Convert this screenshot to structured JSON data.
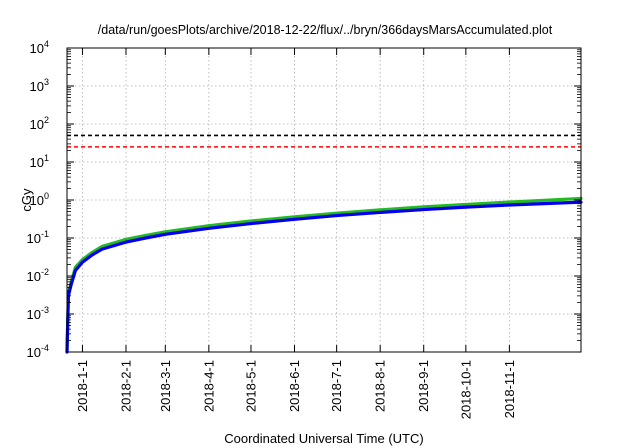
{
  "chart_data": {
    "type": "line",
    "title": "/data/run/goesPlots/archive/2018-12-22/flux/../bryn/366daysMarsAccumulated.plot",
    "xlabel": "Coordinated Universal Time (UTC)",
    "ylabel": "cGy",
    "xlim": [
      "2017-12-21",
      "2018-12-22"
    ],
    "ylim": [
      0.0001,
      10000
    ],
    "yscale": "log",
    "grid": true,
    "x_ticks": [
      "2018-1-1",
      "2018-2-1",
      "2018-3-1",
      "2018-4-1",
      "2018-5-1",
      "2018-6-1",
      "2018-7-1",
      "2018-8-1",
      "2018-9-1",
      "2018-10-1",
      "2018-11-1"
    ],
    "y_ticks": [
      {
        "value": 0.0001,
        "base": "10",
        "exp": "-4"
      },
      {
        "value": 0.001,
        "base": "10",
        "exp": "-3"
      },
      {
        "value": 0.01,
        "base": "10",
        "exp": "-2"
      },
      {
        "value": 0.1,
        "base": "10",
        "exp": "-1"
      },
      {
        "value": 1,
        "base": "10",
        "exp": "0"
      },
      {
        "value": 10,
        "base": "10",
        "exp": "1"
      },
      {
        "value": 100,
        "base": "10",
        "exp": "2"
      },
      {
        "value": 1000,
        "base": "10",
        "exp": "3"
      },
      {
        "value": 10000,
        "base": "10",
        "exp": "4"
      }
    ],
    "reference_lines": [
      {
        "value": 50,
        "color": "#000000",
        "style": "dashed"
      },
      {
        "value": 25,
        "color": "#ff0000",
        "style": "dashed"
      }
    ],
    "series": [
      {
        "color": "#22bb22",
        "points": [
          [
            "2017-12-21",
            0.0001
          ],
          [
            "2017-12-22",
            0.0035
          ],
          [
            "2017-12-24",
            0.007
          ],
          [
            "2017-12-27",
            0.017
          ],
          [
            "2018-1-1",
            0.027
          ],
          [
            "2018-1-8",
            0.042
          ],
          [
            "2018-1-15",
            0.06
          ],
          [
            "2018-2-1",
            0.092
          ],
          [
            "2018-2-15",
            0.117
          ],
          [
            "2018-3-1",
            0.145
          ],
          [
            "2018-4-1",
            0.21
          ],
          [
            "2018-5-1",
            0.28
          ],
          [
            "2018-6-1",
            0.36
          ],
          [
            "2018-7-1",
            0.45
          ],
          [
            "2018-8-1",
            0.55
          ],
          [
            "2018-9-1",
            0.66
          ],
          [
            "2018-10-1",
            0.76
          ],
          [
            "2018-11-1",
            0.88
          ],
          [
            "2018-12-22",
            1.1
          ]
        ]
      },
      {
        "color": "#0000ee",
        "points": [
          [
            "2017-12-21",
            0.0001
          ],
          [
            "2017-12-22",
            0.003
          ],
          [
            "2017-12-24",
            0.006
          ],
          [
            "2017-12-27",
            0.014
          ],
          [
            "2018-1-1",
            0.023
          ],
          [
            "2018-1-8",
            0.036
          ],
          [
            "2018-1-15",
            0.051
          ],
          [
            "2018-2-1",
            0.078
          ],
          [
            "2018-2-15",
            0.1
          ],
          [
            "2018-3-1",
            0.125
          ],
          [
            "2018-4-1",
            0.18
          ],
          [
            "2018-5-1",
            0.24
          ],
          [
            "2018-6-1",
            0.31
          ],
          [
            "2018-7-1",
            0.39
          ],
          [
            "2018-8-1",
            0.47
          ],
          [
            "2018-9-1",
            0.56
          ],
          [
            "2018-10-1",
            0.65
          ],
          [
            "2018-11-1",
            0.74
          ],
          [
            "2018-12-22",
            0.88
          ]
        ]
      }
    ]
  }
}
